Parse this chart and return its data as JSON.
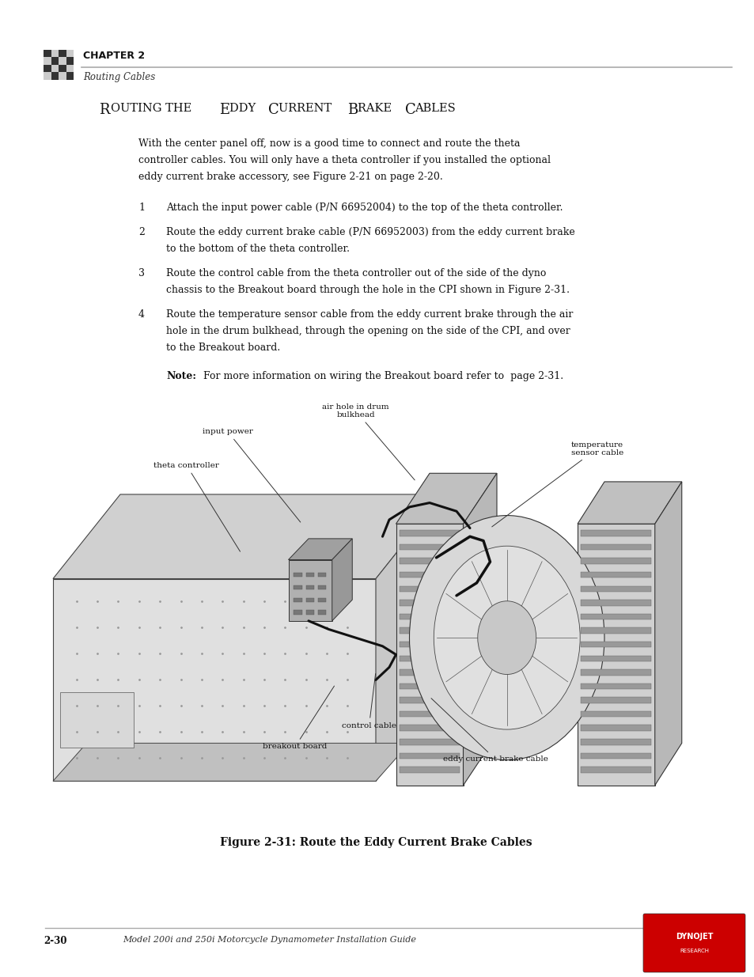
{
  "bg_color": "#ffffff",
  "page_width": 9.54,
  "page_height": 12.35,
  "header_chapter": "CHAPTER 2",
  "header_subtitle": "Routing Cables",
  "header_line_color": "#aaaaaa",
  "section_title_parts": [
    "R",
    "OUTING THE ",
    "E",
    "DDY ",
    "C",
    "URRENT ",
    "B",
    "RAKE ",
    "C",
    "ABLES"
  ],
  "section_title": "Routing the Eddy Current Brake Cables",
  "intro_text": "With the center panel off, now is a good time to connect and route the theta\ncontroller cables. You will only have a theta controller if you installed the optional\neddy current brake accessory, see Figure 2-21 on page 2-20.",
  "steps": [
    {
      "num": "1",
      "text": "Attach the input power cable (P/N 66952004) to the top of the theta controller."
    },
    {
      "num": "2",
      "text": "Route the eddy current brake cable (P/N 66952003) from the eddy current brake\nto the bottom of the theta controller."
    },
    {
      "num": "3",
      "text": "Route the control cable from the theta controller out of the side of the dyno\nchassis to the Breakout board through the hole in the CPI shown in Figure 2-31."
    },
    {
      "num": "4",
      "text": "Route the temperature sensor cable from the eddy current brake through the air\nhole in the drum bulkhead, through the opening on the side of the CPI, and over\nto the Breakout board."
    }
  ],
  "note_bold": "Note:",
  "note_rest": " For more information on wiring the Breakout board refer to  page 2-31.",
  "figure_caption": "Figure 2-31: Route the Eddy Current Brake Cables",
  "footer_num": "2-30",
  "footer_text": "Model 200i and 250i Motorcycle Dynamometer Installation Guide",
  "footer_line_color": "#aaaaaa",
  "label_input_power": "input power",
  "label_air_hole": "air hole in drum\nbulkhead",
  "label_theta": "theta controller",
  "label_temp": "temperature\nsensor cable",
  "label_control": "control cable",
  "label_breakout": "breakout board",
  "label_eddy_cable": "eddy current brake cable"
}
